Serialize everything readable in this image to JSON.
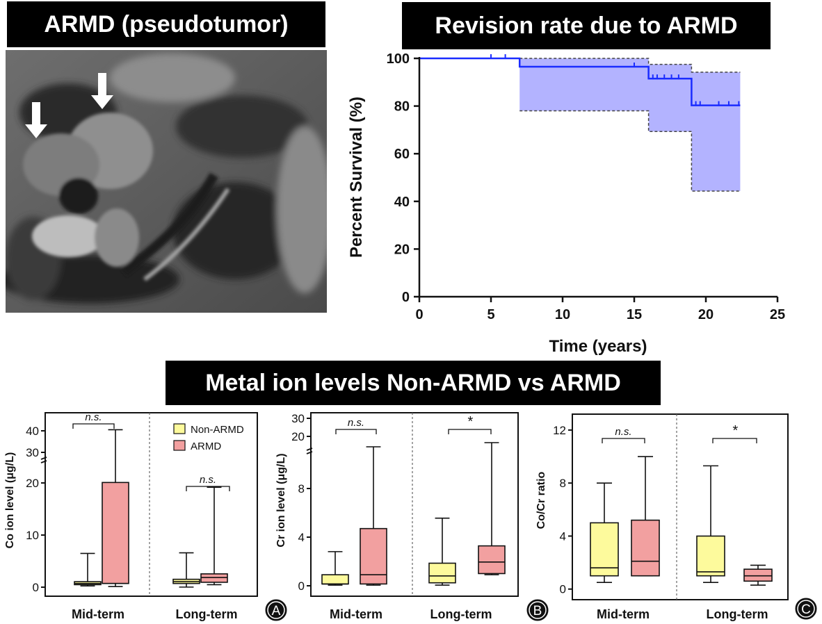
{
  "banners": {
    "armd": "ARMD (pseudotumor)",
    "revision": "Revision rate due to ARMD",
    "metal": "Metal ion levels Non-ARMD vs ARMD"
  },
  "colors": {
    "survival_line": "#1a2cff",
    "survival_ci": "#b3b3ff",
    "non_armd": "#fdfa9c",
    "armd": "#f2a0a0"
  },
  "chart_data": [
    {
      "type": "line",
      "subtype": "kaplan-meier",
      "xlabel": "Time (years)",
      "ylabel": "Percent Survival (%)",
      "xlim": [
        0,
        25
      ],
      "ylim": [
        0,
        100
      ],
      "xticks": [
        0,
        5,
        10,
        15,
        20,
        25
      ],
      "yticks": [
        0,
        20,
        40,
        60,
        80,
        100
      ],
      "survival_steps": [
        [
          0,
          100
        ],
        [
          7,
          96.5
        ],
        [
          16,
          91.5
        ],
        [
          19,
          80.3
        ],
        [
          22.4,
          80.3
        ]
      ],
      "ci_upper_steps": [
        [
          7,
          100
        ],
        [
          16,
          97.5
        ],
        [
          19,
          94.2
        ],
        [
          22.4,
          94.2
        ]
      ],
      "ci_lower_steps": [
        [
          7,
          78
        ],
        [
          16,
          69.3
        ],
        [
          19,
          44.3
        ],
        [
          22.4,
          44.3
        ]
      ],
      "censor_times": [
        5,
        6,
        15,
        16.3,
        16.6,
        17.1,
        17.6,
        18.1,
        19.3,
        19.6,
        20.9,
        21.6,
        22.3
      ]
    },
    {
      "type": "box",
      "panel_letter": "A",
      "ylabel": "Co ion level (μg/L)",
      "yticks": [
        "0",
        "10",
        "20",
        "30",
        "40"
      ],
      "categories": [
        "Mid-term",
        "Long-term"
      ],
      "legend": [
        "Non-ARMD",
        "ARMD"
      ],
      "legend_position": "top-right",
      "comparisons": [
        "n.s.",
        "n.s."
      ],
      "broken_axis": true,
      "y_break": [
        22,
        28
      ],
      "series": [
        {
          "name": "Non-ARMD",
          "boxes": [
            {
              "min": 0.6,
              "q1": 0.8,
              "median": 1.0,
              "q3": 1.3,
              "max": 6.0
            },
            {
              "min": 0.4,
              "q1": 1.0,
              "median": 1.3,
              "q3": 1.7,
              "max": 6.1
            }
          ]
        },
        {
          "name": "ARMD",
          "boxes": [
            {
              "min": 0.5,
              "q1": 1.0,
              "median": 1.0,
              "q3": 17.8,
              "max": 38.0
            },
            {
              "min": 0.8,
              "q1": 1.2,
              "median": 2.0,
              "q3": 2.6,
              "max": 17.0
            }
          ]
        }
      ]
    },
    {
      "type": "box",
      "panel_letter": "B",
      "ylabel": "Cr ion level (μg/L)",
      "yticks": [
        "0",
        "4",
        "8",
        "20",
        "30"
      ],
      "categories": [
        "Mid-term",
        "Long-term"
      ],
      "comparisons": [
        "n.s.",
        "*"
      ],
      "broken_axis": true,
      "y_break": [
        11,
        18
      ],
      "series": [
        {
          "name": "Non-ARMD",
          "boxes": [
            {
              "min": 0.1,
              "q1": 0.2,
              "median": 0.2,
              "q3": 1.0,
              "max": 3.0
            },
            {
              "min": 0.1,
              "q1": 0.3,
              "median": 0.9,
              "q3": 2.0,
              "max": 5.9
            }
          ]
        },
        {
          "name": "ARMD",
          "boxes": [
            {
              "min": 0.1,
              "q1": 0.2,
              "median": 1.0,
              "q3": 5.0,
              "max": 19.5
            },
            {
              "min": 1.0,
              "q1": 1.1,
              "median": 2.1,
              "q3": 3.5,
              "max": 21.0
            }
          ]
        }
      ]
    },
    {
      "type": "box",
      "panel_letter": "C",
      "ylabel": "Co/Cr ratio",
      "yticks": [
        "0",
        "4",
        "8",
        "12"
      ],
      "ylim": [
        -0.8,
        13.2
      ],
      "categories": [
        "Mid-term",
        "Long-term"
      ],
      "comparisons": [
        "n.s.",
        "*"
      ],
      "broken_axis": false,
      "series": [
        {
          "name": "Non-ARMD",
          "boxes": [
            {
              "min": 0.5,
              "q1": 1.0,
              "median": 1.6,
              "q3": 5.0,
              "max": 8.0
            },
            {
              "min": 0.5,
              "q1": 1.0,
              "median": 1.3,
              "q3": 4.0,
              "max": 9.3
            }
          ]
        },
        {
          "name": "ARMD",
          "boxes": [
            {
              "min": 1.0,
              "q1": 1.0,
              "median": 2.1,
              "q3": 5.2,
              "max": 10.0
            },
            {
              "min": 0.3,
              "q1": 0.6,
              "median": 1.0,
              "q3": 1.5,
              "max": 1.8
            }
          ]
        }
      ]
    }
  ]
}
